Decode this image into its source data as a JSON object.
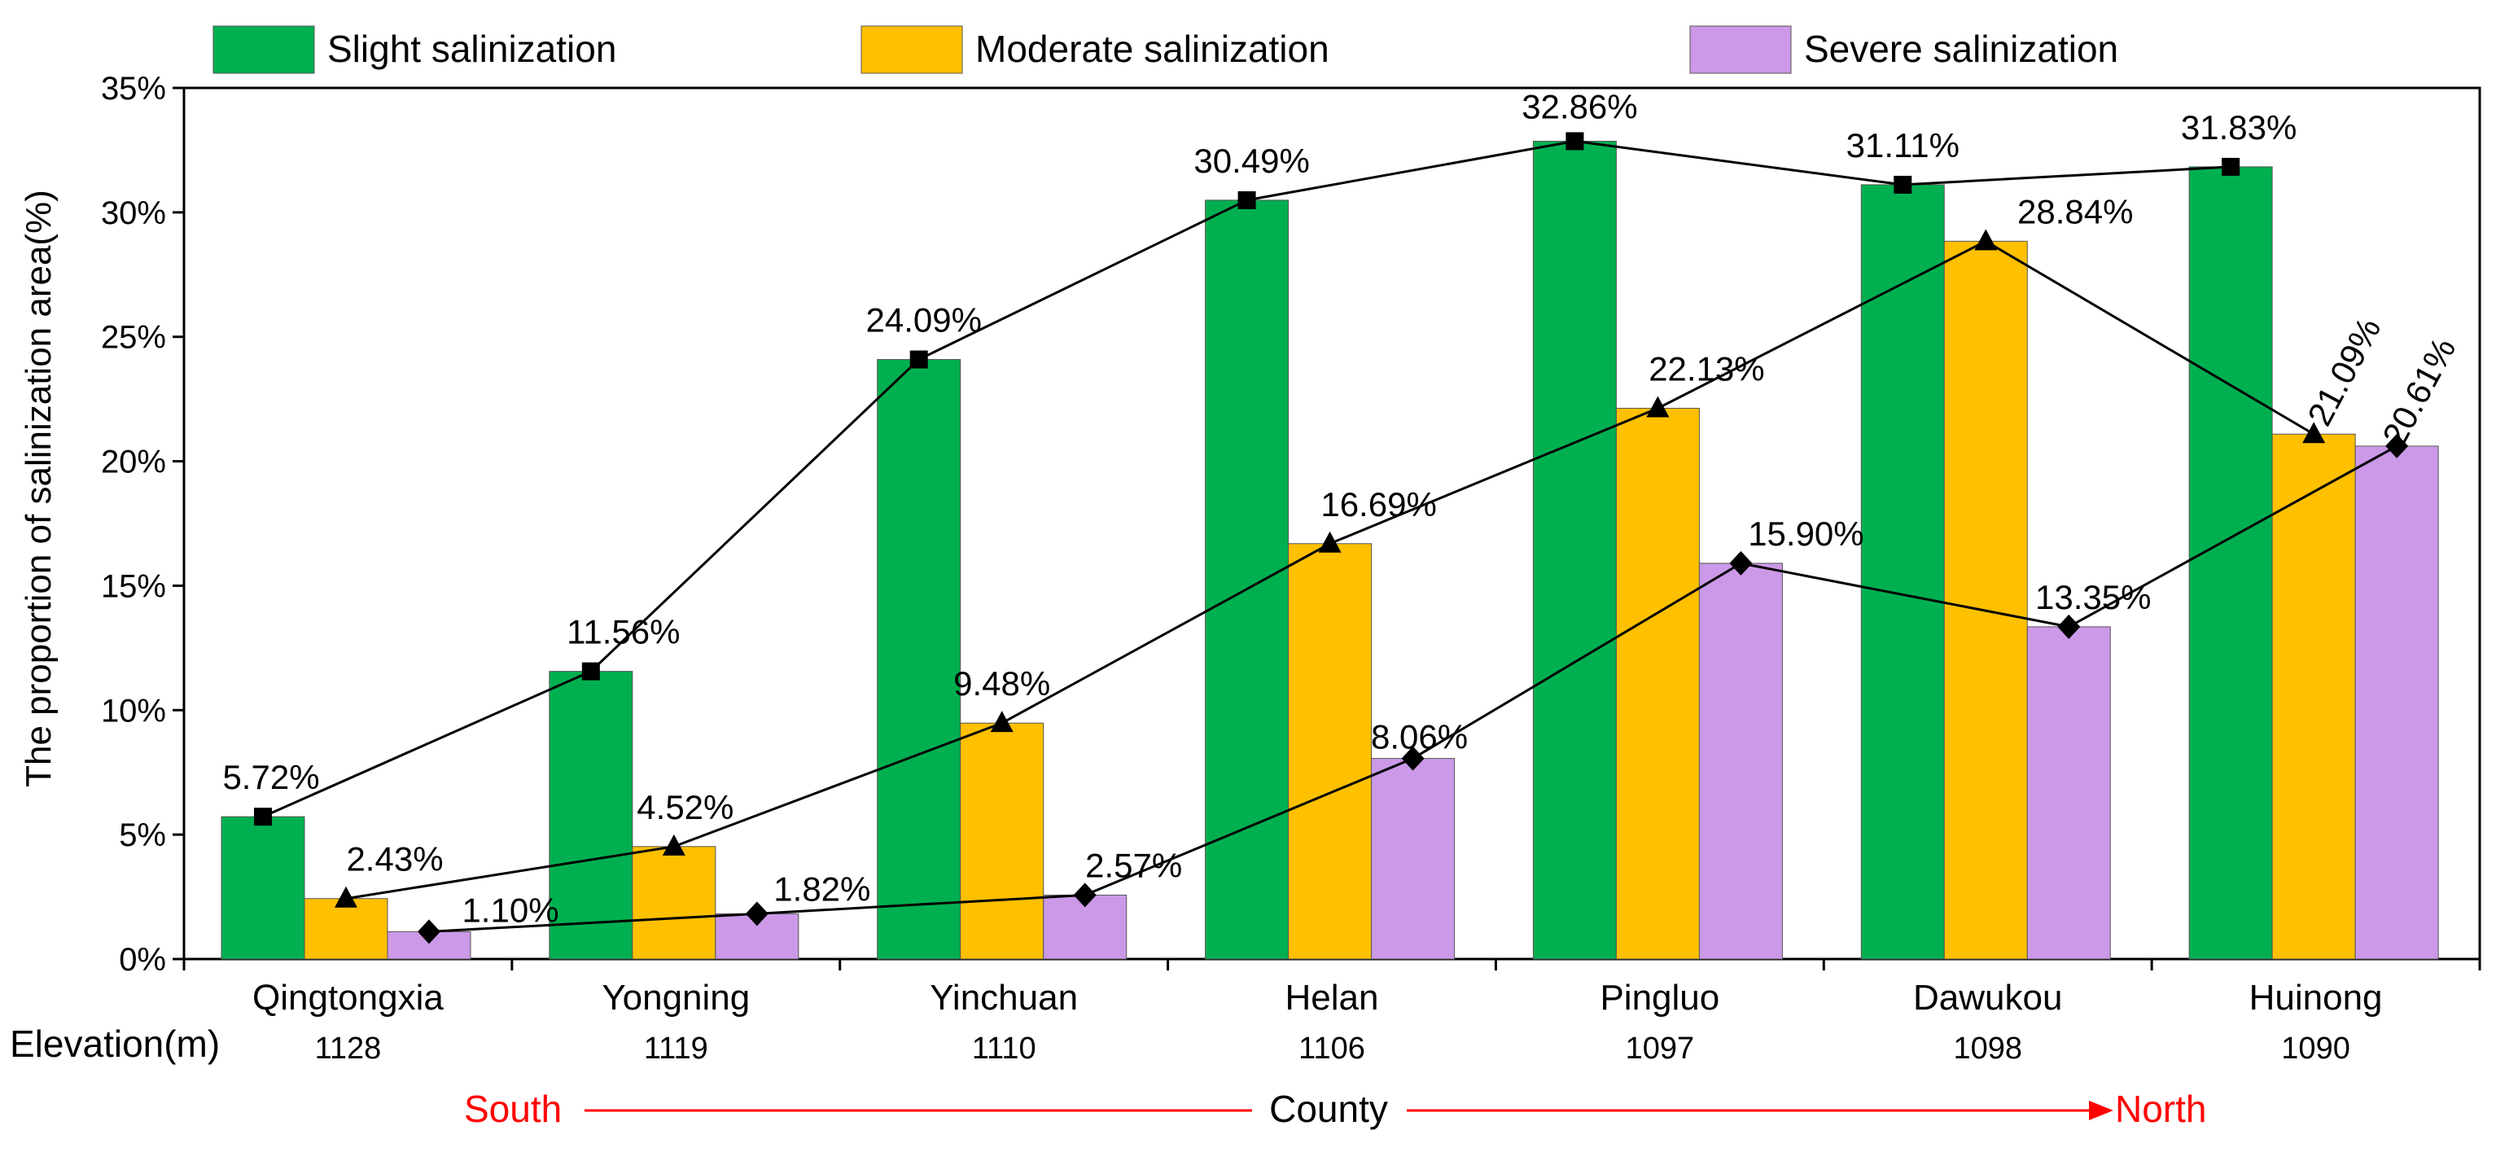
{
  "chart_data": {
    "type": "bar",
    "ylabel": "The proportion of salinization area(%)",
    "ylim": [
      0,
      35
    ],
    "ytick_step": 5,
    "ytick_suffix": "%",
    "categories": [
      "Qingtongxia",
      "Yongning",
      "Yinchuan",
      "Helan",
      "Pingluo",
      "Dawukou",
      "Huinong"
    ],
    "series": [
      {
        "name": "Slight salinization",
        "color": "#00b050",
        "marker": "square",
        "values": [
          5.72,
          11.56,
          24.09,
          30.49,
          32.86,
          31.11,
          31.83
        ],
        "labels": [
          "5.72%",
          "11.56%",
          "24.09%",
          "30.49%",
          "32.86%",
          "31.11%",
          "31.83%"
        ]
      },
      {
        "name": "Moderate salinization",
        "color": "#ffc000",
        "marker": "triangle",
        "values": [
          2.43,
          4.52,
          9.48,
          16.69,
          22.13,
          28.84,
          21.09
        ],
        "labels": [
          "2.43%",
          "4.52%",
          "9.48%",
          "16.69%",
          "22.13%",
          "28.84%",
          "21.09%"
        ]
      },
      {
        "name": "Severe salinization",
        "color": "#cc99e8",
        "marker": "diamond",
        "values": [
          1.1,
          1.82,
          2.57,
          8.06,
          15.9,
          13.35,
          20.61
        ],
        "labels": [
          "1.10%",
          "1.82%",
          "2.57%",
          "8.06%",
          "15.90%",
          "13.35%",
          "20.61%"
        ]
      }
    ],
    "legend_position": "top",
    "grid": false,
    "elevation": {
      "title": "Elevation(m)",
      "values": [
        "1128",
        "1119",
        "1110",
        "1106",
        "1097",
        "1098",
        "1090"
      ]
    },
    "direction": {
      "start": "South",
      "middle": "County",
      "end": "North",
      "color": "#ff0000"
    }
  }
}
